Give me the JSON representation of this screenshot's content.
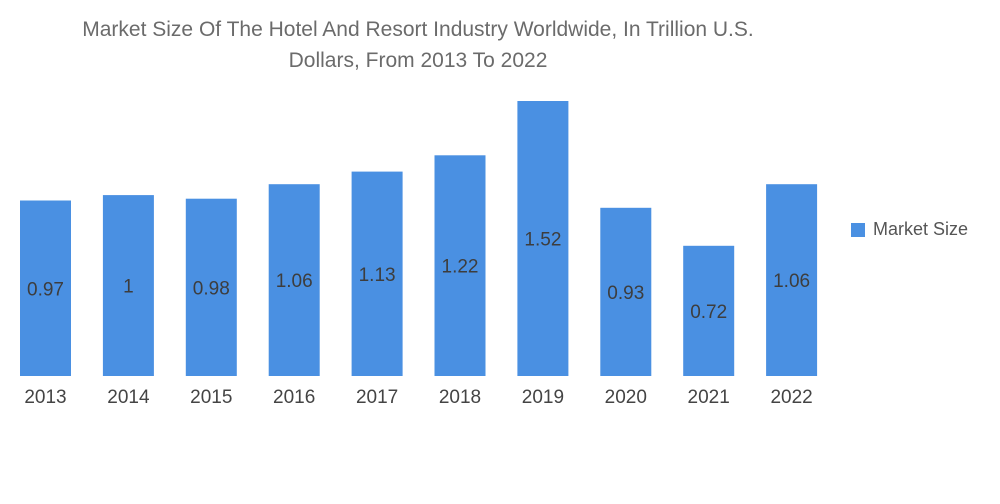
{
  "chart_data": {
    "type": "bar",
    "title_lines": [
      "Market Size Of The Hotel And Resort Industry Worldwide, In Trillion U.S.",
      "Dollars, From 2013 To 2022"
    ],
    "categories": [
      "2013",
      "2014",
      "2015",
      "2016",
      "2017",
      "2018",
      "2019",
      "2020",
      "2021",
      "2022"
    ],
    "series": [
      {
        "name": "Market Size",
        "values": [
          0.97,
          1,
          0.98,
          1.06,
          1.13,
          1.22,
          1.52,
          0.93,
          0.72,
          1.06
        ],
        "value_labels": [
          "0.97",
          "1",
          "0.98",
          "1.06",
          "1.13",
          "1.22",
          "1.52",
          "0.93",
          "0.72",
          "1.06"
        ],
        "color": "#4a90e2"
      }
    ],
    "ylim": [
      0,
      1.6
    ],
    "grid": false,
    "y_axis_visible": false,
    "legend_position": "right"
  }
}
